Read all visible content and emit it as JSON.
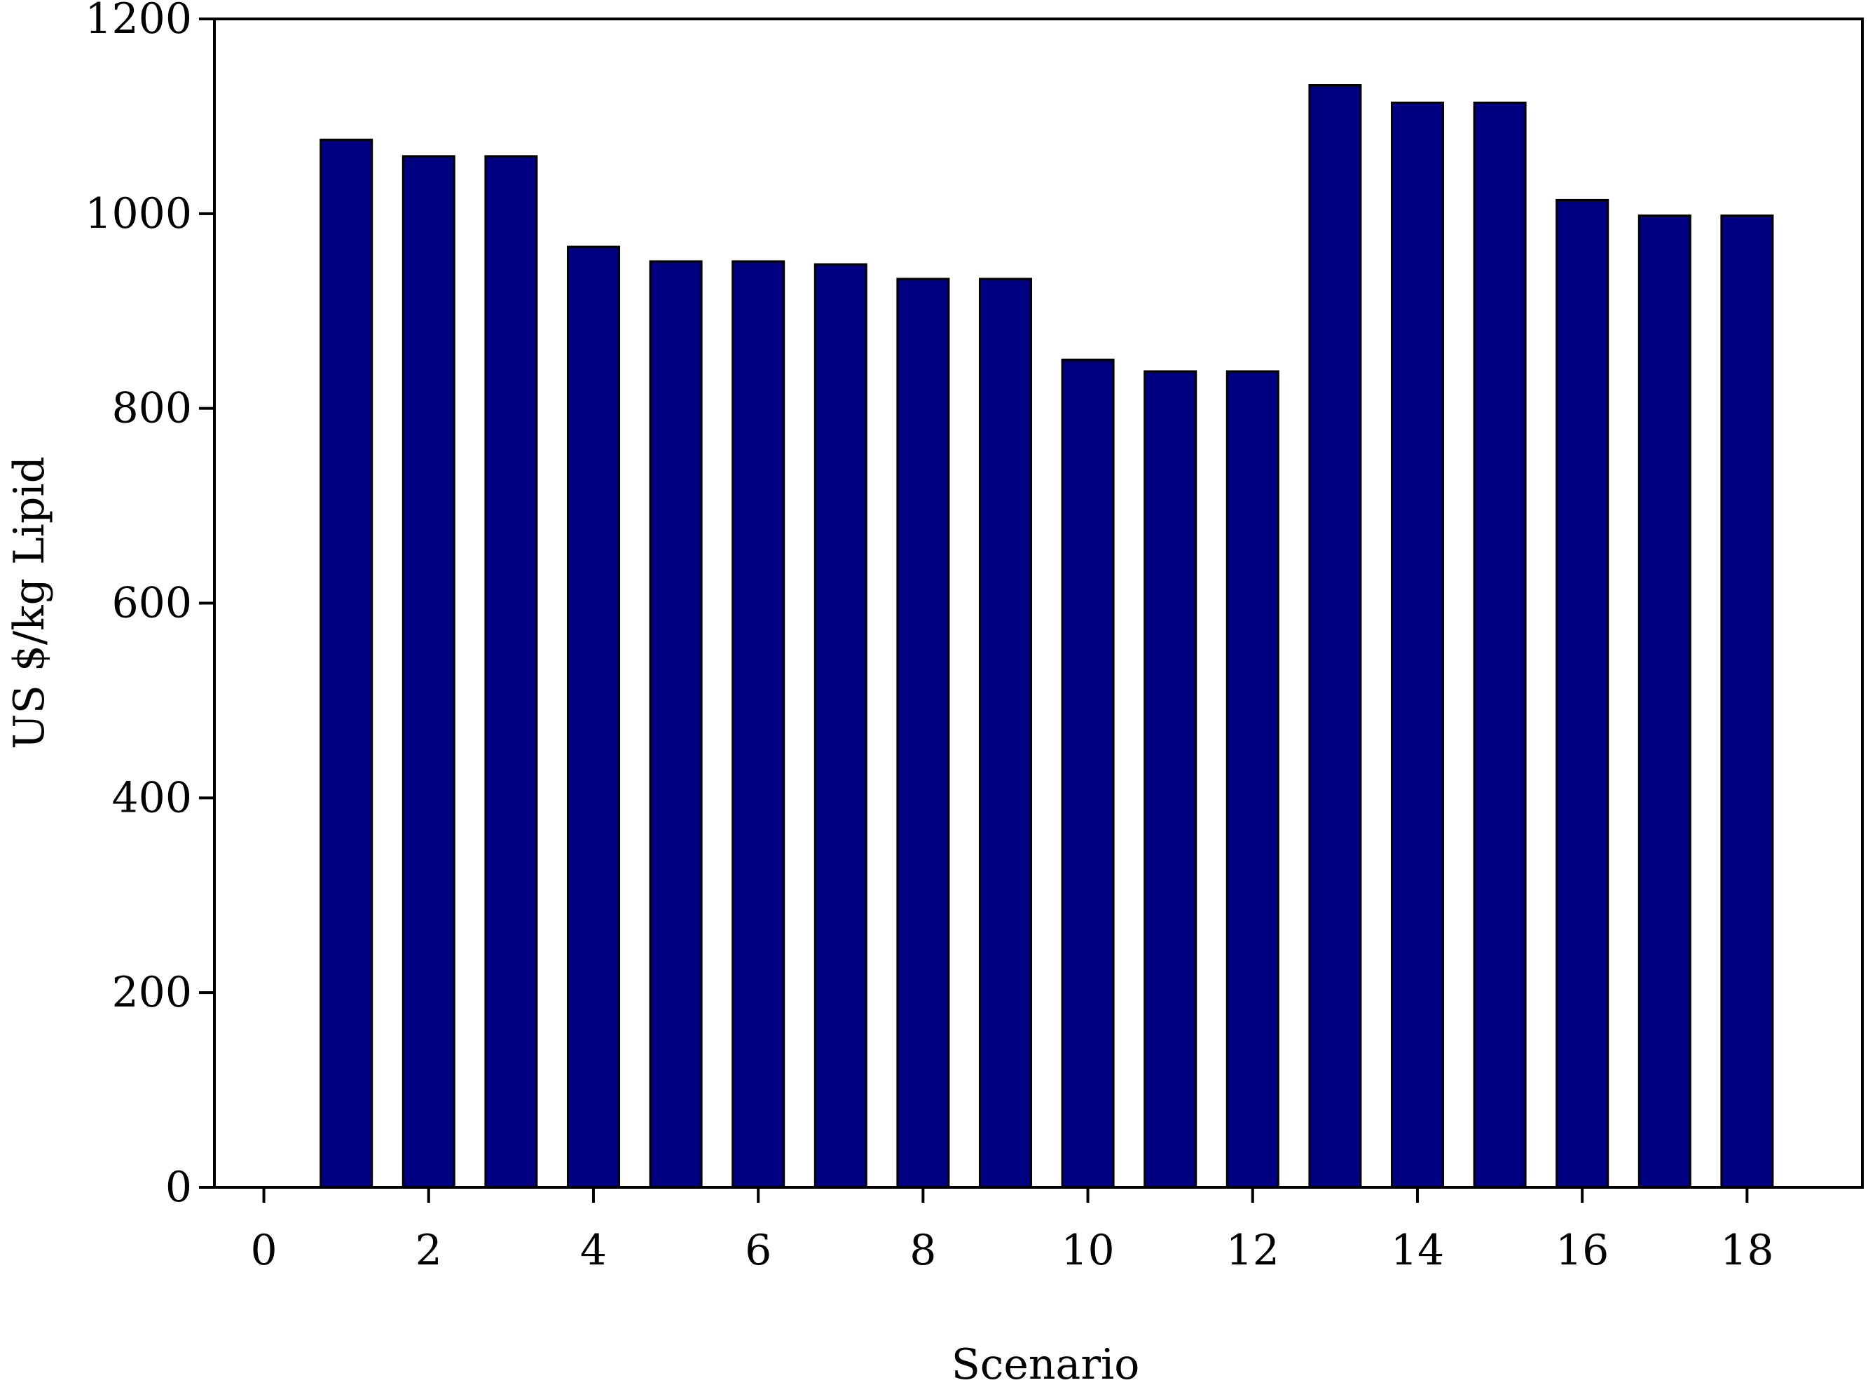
{
  "chart_data": {
    "type": "bar",
    "title": "",
    "xlabel": "Scenario",
    "ylabel": "US $/kg Lipid",
    "xlim": [
      -0.6,
      19.4
    ],
    "ylim": [
      0,
      1200
    ],
    "x_ticks": [
      0,
      2,
      4,
      6,
      8,
      10,
      12,
      14,
      16,
      18
    ],
    "y_ticks": [
      0,
      200,
      400,
      600,
      800,
      1000,
      1200
    ],
    "grid": false,
    "legend": "none",
    "bar_color": "#000080",
    "bar_edge_color": "#000000",
    "x": [
      1,
      2,
      3,
      4,
      5,
      6,
      7,
      8,
      9,
      10,
      11,
      12,
      13,
      14,
      15,
      16,
      17,
      18
    ],
    "values": [
      1076,
      1059,
      1059,
      966,
      951,
      951,
      948,
      933,
      933,
      850,
      838,
      838,
      1132,
      1114,
      1114,
      1014,
      998,
      998
    ]
  }
}
